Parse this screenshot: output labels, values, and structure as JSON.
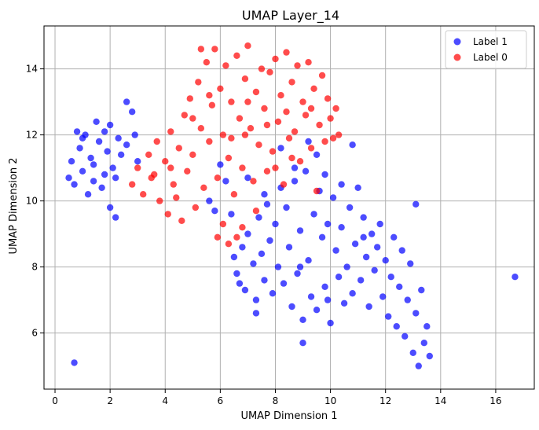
{
  "chart_data": {
    "type": "scatter",
    "title": "UMAP Layer_14",
    "xlabel": "UMAP Dimension 1",
    "ylabel": "UMAP Dimension 2",
    "xlim": [
      -0.4,
      17.4
    ],
    "ylim": [
      4.3,
      15.3
    ],
    "xticks": [
      0,
      2,
      4,
      6,
      8,
      10,
      12,
      14,
      16
    ],
    "yticks": [
      6,
      8,
      10,
      12,
      14
    ],
    "grid": true,
    "legend_position": "top-right",
    "series": [
      {
        "name": "Label 1",
        "color": "#0000ff",
        "points": [
          [
            0.5,
            10.7
          ],
          [
            0.6,
            11.2
          ],
          [
            0.7,
            10.5
          ],
          [
            0.9,
            11.6
          ],
          [
            1.0,
            10.9
          ],
          [
            1.1,
            12.0
          ],
          [
            1.3,
            11.3
          ],
          [
            1.4,
            10.6
          ],
          [
            1.5,
            12.4
          ],
          [
            1.6,
            11.8
          ],
          [
            1.8,
            10.8
          ],
          [
            1.9,
            11.5
          ],
          [
            2.0,
            12.3
          ],
          [
            2.1,
            11.0
          ],
          [
            2.2,
            10.7
          ],
          [
            2.3,
            11.9
          ],
          [
            1.2,
            10.2
          ],
          [
            1.7,
            10.4
          ],
          [
            0.8,
            12.1
          ],
          [
            1.4,
            11.1
          ],
          [
            2.0,
            9.8
          ],
          [
            2.2,
            9.5
          ],
          [
            2.6,
            13.0
          ],
          [
            2.8,
            12.7
          ],
          [
            2.9,
            12.0
          ],
          [
            2.6,
            11.7
          ],
          [
            3.0,
            11.2
          ],
          [
            2.4,
            11.4
          ],
          [
            1.0,
            11.9
          ],
          [
            1.8,
            12.1
          ],
          [
            0.7,
            5.1
          ],
          [
            5.6,
            10.0
          ],
          [
            5.8,
            9.7
          ],
          [
            6.0,
            11.1
          ],
          [
            6.2,
            10.6
          ],
          [
            6.4,
            9.6
          ],
          [
            6.5,
            8.3
          ],
          [
            6.6,
            7.8
          ],
          [
            6.8,
            8.6
          ],
          [
            6.9,
            7.3
          ],
          [
            7.0,
            9.0
          ],
          [
            7.2,
            8.1
          ],
          [
            7.3,
            7.0
          ],
          [
            7.4,
            9.5
          ],
          [
            7.5,
            8.4
          ],
          [
            7.6,
            7.6
          ],
          [
            7.7,
            9.9
          ],
          [
            7.8,
            8.8
          ],
          [
            7.9,
            7.2
          ],
          [
            8.0,
            9.3
          ],
          [
            8.1,
            8.0
          ],
          [
            8.2,
            10.4
          ],
          [
            8.3,
            7.5
          ],
          [
            8.4,
            9.8
          ],
          [
            8.5,
            8.6
          ],
          [
            8.6,
            6.8
          ],
          [
            8.7,
            10.6
          ],
          [
            8.8,
            7.8
          ],
          [
            8.9,
            9.1
          ],
          [
            9.0,
            6.4
          ],
          [
            9.1,
            10.9
          ],
          [
            9.2,
            8.2
          ],
          [
            9.3,
            7.1
          ],
          [
            9.4,
            9.6
          ],
          [
            9.5,
            6.7
          ],
          [
            9.6,
            10.3
          ],
          [
            9.7,
            8.9
          ],
          [
            9.8,
            7.4
          ],
          [
            9.9,
            9.3
          ],
          [
            10.0,
            6.3
          ],
          [
            10.1,
            10.1
          ],
          [
            10.2,
            8.5
          ],
          [
            10.3,
            7.7
          ],
          [
            10.4,
            9.2
          ],
          [
            10.5,
            6.9
          ],
          [
            10.6,
            8.0
          ],
          [
            10.7,
            9.8
          ],
          [
            10.8,
            7.2
          ],
          [
            10.9,
            8.7
          ],
          [
            11.0,
            10.4
          ],
          [
            11.1,
            7.6
          ],
          [
            11.2,
            9.5
          ],
          [
            11.3,
            8.3
          ],
          [
            11.4,
            6.8
          ],
          [
            11.5,
            9.0
          ],
          [
            11.6,
            7.9
          ],
          [
            11.7,
            8.6
          ],
          [
            11.8,
            9.3
          ],
          [
            11.9,
            7.1
          ],
          [
            12.0,
            8.2
          ],
          [
            12.1,
            6.5
          ],
          [
            12.2,
            7.7
          ],
          [
            12.3,
            8.9
          ],
          [
            12.4,
            6.2
          ],
          [
            12.5,
            7.4
          ],
          [
            12.6,
            8.5
          ],
          [
            12.7,
            5.9
          ],
          [
            12.8,
            7.0
          ],
          [
            12.9,
            8.1
          ],
          [
            13.0,
            5.4
          ],
          [
            13.1,
            6.6
          ],
          [
            13.2,
            5.0
          ],
          [
            13.3,
            7.3
          ],
          [
            13.4,
            5.7
          ],
          [
            13.5,
            6.2
          ],
          [
            13.6,
            5.3
          ],
          [
            13.1,
            9.9
          ],
          [
            9.0,
            5.7
          ],
          [
            10.8,
            11.7
          ],
          [
            9.5,
            11.4
          ],
          [
            8.7,
            11.0
          ],
          [
            9.8,
            10.8
          ],
          [
            10.4,
            10.5
          ],
          [
            7.6,
            10.2
          ],
          [
            8.2,
            11.6
          ],
          [
            9.2,
            11.8
          ],
          [
            7.0,
            10.7
          ],
          [
            8.9,
            8.0
          ],
          [
            9.9,
            7.0
          ],
          [
            11.2,
            8.9
          ],
          [
            6.7,
            7.5
          ],
          [
            7.3,
            6.6
          ],
          [
            16.7,
            7.7
          ]
        ]
      },
      {
        "name": "Label 0",
        "color": "#ff0000",
        "points": [
          [
            2.8,
            10.5
          ],
          [
            3.0,
            11.0
          ],
          [
            3.2,
            10.2
          ],
          [
            3.4,
            11.4
          ],
          [
            3.5,
            10.7
          ],
          [
            3.7,
            11.8
          ],
          [
            3.8,
            10.0
          ],
          [
            4.0,
            11.2
          ],
          [
            4.1,
            9.6
          ],
          [
            4.2,
            12.1
          ],
          [
            4.3,
            10.5
          ],
          [
            4.5,
            11.6
          ],
          [
            4.6,
            9.4
          ],
          [
            4.7,
            12.6
          ],
          [
            4.8,
            10.9
          ],
          [
            4.9,
            13.1
          ],
          [
            5.0,
            11.4
          ],
          [
            5.1,
            9.8
          ],
          [
            5.2,
            13.6
          ],
          [
            5.3,
            12.2
          ],
          [
            5.4,
            10.4
          ],
          [
            5.5,
            14.2
          ],
          [
            5.6,
            11.8
          ],
          [
            5.7,
            12.9
          ],
          [
            5.8,
            14.6
          ],
          [
            5.9,
            10.7
          ],
          [
            6.0,
            13.4
          ],
          [
            6.1,
            12.0
          ],
          [
            6.2,
            14.1
          ],
          [
            6.3,
            11.3
          ],
          [
            6.4,
            13.0
          ],
          [
            6.5,
            10.2
          ],
          [
            6.6,
            14.4
          ],
          [
            6.7,
            12.5
          ],
          [
            6.8,
            11.0
          ],
          [
            6.9,
            13.7
          ],
          [
            7.0,
            14.7
          ],
          [
            7.1,
            12.2
          ],
          [
            7.2,
            10.6
          ],
          [
            7.3,
            13.3
          ],
          [
            7.4,
            11.7
          ],
          [
            7.5,
            14.0
          ],
          [
            7.6,
            12.8
          ],
          [
            7.7,
            10.9
          ],
          [
            7.8,
            13.9
          ],
          [
            7.9,
            11.5
          ],
          [
            8.0,
            14.3
          ],
          [
            8.1,
            12.4
          ],
          [
            8.2,
            13.2
          ],
          [
            8.3,
            10.5
          ],
          [
            8.4,
            14.5
          ],
          [
            8.5,
            11.9
          ],
          [
            8.6,
            13.6
          ],
          [
            8.7,
            12.1
          ],
          [
            8.8,
            14.1
          ],
          [
            8.9,
            11.2
          ],
          [
            9.0,
            13.0
          ],
          [
            9.1,
            12.6
          ],
          [
            9.2,
            14.2
          ],
          [
            9.3,
            11.6
          ],
          [
            9.4,
            13.4
          ],
          [
            9.5,
            10.3
          ],
          [
            9.6,
            12.3
          ],
          [
            9.7,
            13.8
          ],
          [
            9.8,
            11.8
          ],
          [
            9.9,
            13.1
          ],
          [
            10.0,
            12.5
          ],
          [
            10.1,
            11.9
          ],
          [
            10.2,
            12.8
          ],
          [
            10.3,
            12.0
          ],
          [
            5.9,
            8.9
          ],
          [
            6.3,
            8.7
          ],
          [
            6.6,
            8.9
          ],
          [
            6.8,
            9.2
          ],
          [
            7.3,
            9.7
          ],
          [
            6.1,
            9.3
          ],
          [
            3.6,
            10.8
          ],
          [
            4.4,
            10.1
          ],
          [
            5.0,
            12.5
          ],
          [
            5.6,
            13.2
          ],
          [
            6.9,
            12.0
          ],
          [
            7.7,
            12.3
          ],
          [
            8.6,
            11.3
          ],
          [
            9.3,
            12.8
          ],
          [
            8.0,
            11.0
          ],
          [
            6.4,
            11.9
          ],
          [
            4.2,
            11.0
          ],
          [
            5.3,
            14.6
          ],
          [
            7.0,
            13.0
          ],
          [
            8.4,
            12.7
          ]
        ]
      }
    ]
  }
}
